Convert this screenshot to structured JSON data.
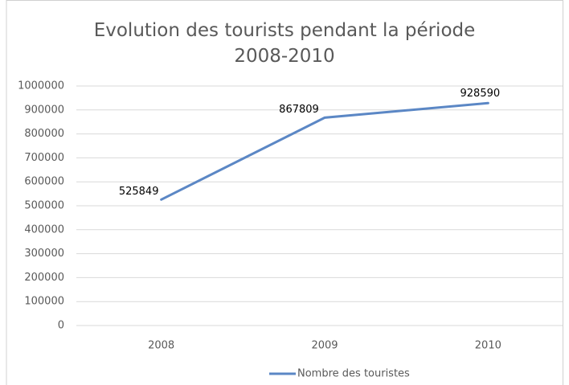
{
  "chart_data": {
    "type": "line",
    "title": "Evolution des tourists pendant la période 2008-2010",
    "categories": [
      "2008",
      "2009",
      "2010"
    ],
    "series": [
      {
        "name": "Nombre des touristes",
        "color": "#5b87c5",
        "values": [
          525849,
          867809,
          928590
        ]
      }
    ],
    "ylim": [
      0,
      1000000
    ],
    "yticks": [
      0,
      100000,
      200000,
      300000,
      400000,
      500000,
      600000,
      700000,
      800000,
      900000,
      1000000
    ],
    "grid": true,
    "legend": "bottom"
  }
}
